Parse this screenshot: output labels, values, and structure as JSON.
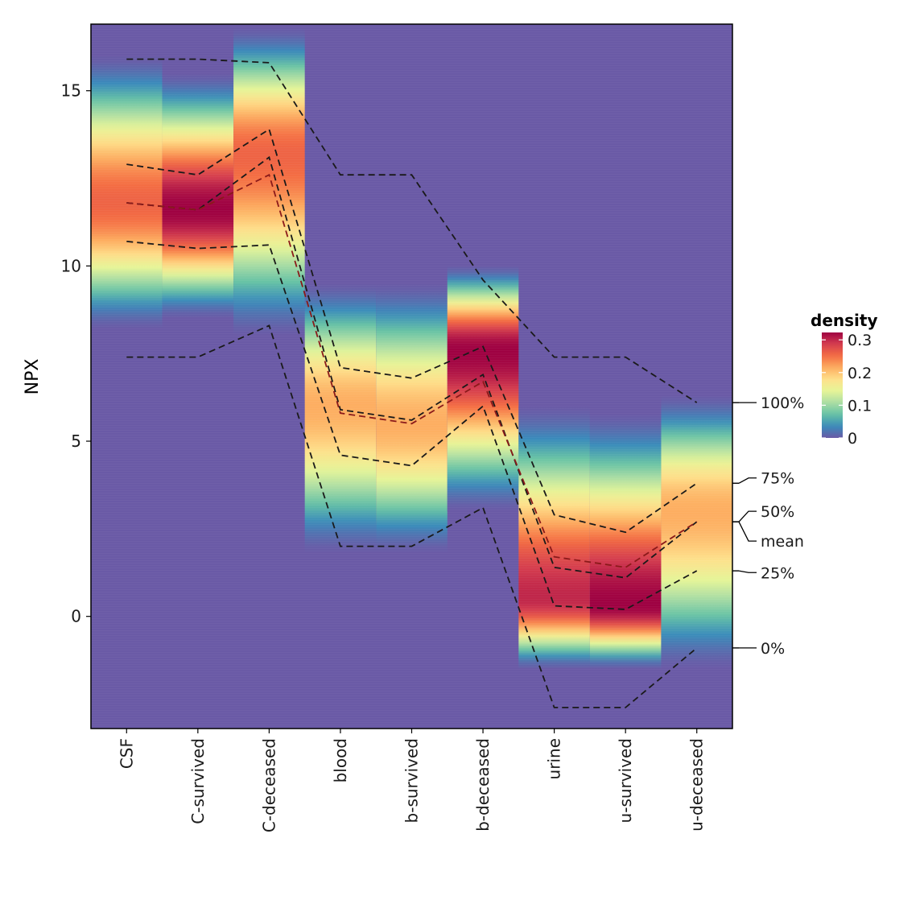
{
  "chart_data": {
    "type": "heatmap",
    "subtype": "density-strip",
    "ylabel": "NPX",
    "ylim": [
      -3.2,
      16.9
    ],
    "yticks": [
      "0",
      "5",
      "10",
      "15"
    ],
    "ytick_values": [
      0,
      5,
      10,
      15
    ],
    "categories": [
      "CSF",
      "C-survived",
      "C-deceased",
      "blood",
      "b-survived",
      "b-deceased",
      "urine",
      "u-survived",
      "u-deceased"
    ],
    "colors": {
      "scale": [
        "#6a5aa6",
        "#3a8bbb",
        "#66c2a5",
        "#abdda4",
        "#e6f598",
        "#fee08b",
        "#fdae61",
        "#f46d43",
        "#d53e4f",
        "#9e0142"
      ],
      "background": "#6a5aa6",
      "dashed_line": "#1a1a1a",
      "mean_line": "#8b1a1a"
    },
    "density_legend": {
      "title": "density",
      "labels": [
        "0.3",
        "0.2",
        "0.1",
        "0"
      ],
      "values": [
        0.3,
        0.2,
        0.1,
        0
      ]
    },
    "density_peaks": [
      {
        "range": [
          8.2,
          16.0
        ],
        "peak": 11.8,
        "max": 0.24
      },
      {
        "range": [
          8.5,
          15.5
        ],
        "peak": 11.6,
        "max": 0.3
      },
      {
        "range": [
          8.0,
          16.8
        ],
        "peak": 13.2,
        "max": 0.24
      },
      {
        "range": [
          1.8,
          9.5
        ],
        "peak": 6.0,
        "max": 0.2
      },
      {
        "range": [
          1.8,
          9.5
        ],
        "peak": 5.5,
        "max": 0.2
      },
      {
        "range": [
          3.0,
          10.0
        ],
        "peak": 7.6,
        "max": 0.3
      },
      {
        "range": [
          -1.5,
          6.0
        ],
        "peak": 0.5,
        "max": 0.28
      },
      {
        "range": [
          -1.5,
          5.8
        ],
        "peak": 0.3,
        "max": 0.3
      },
      {
        "range": [
          -1.5,
          6.3
        ],
        "peak": 3.0,
        "max": 0.2
      }
    ],
    "series": [
      {
        "name": "100%",
        "values": [
          15.9,
          15.9,
          15.8,
          12.6,
          12.6,
          9.6,
          7.4,
          7.4,
          6.1
        ]
      },
      {
        "name": "75%",
        "values": [
          12.9,
          12.6,
          13.9,
          7.1,
          6.8,
          7.7,
          2.9,
          2.4,
          3.8
        ]
      },
      {
        "name": "50%",
        "values": [
          11.8,
          11.6,
          13.1,
          5.9,
          5.6,
          6.9,
          1.4,
          1.1,
          2.7
        ]
      },
      {
        "name": "mean",
        "values": [
          11.8,
          11.6,
          12.6,
          5.8,
          5.5,
          6.7,
          1.7,
          1.4,
          2.7
        ]
      },
      {
        "name": "25%",
        "values": [
          10.7,
          10.5,
          10.6,
          4.6,
          4.3,
          6.0,
          0.3,
          0.2,
          1.3
        ]
      },
      {
        "name": "0%",
        "values": [
          7.4,
          7.4,
          8.3,
          2.0,
          2.0,
          3.1,
          -2.6,
          -2.6,
          -0.9
        ]
      }
    ],
    "annotations": [
      "100%",
      "75%",
      "50%",
      "mean",
      "25%",
      "0%"
    ],
    "annotation_values": [
      6.1,
      3.8,
      2.7,
      2.7,
      1.3,
      -0.9
    ]
  }
}
